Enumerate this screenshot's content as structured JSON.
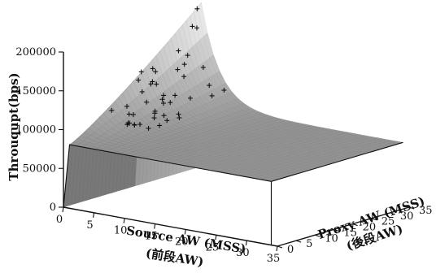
{
  "chart_data": {
    "type": "surface",
    "zlabel": "Throuqupt(bps)",
    "xlabel": "Source AW (MSS)",
    "xlabel_sub": "(前段AW)",
    "ylabel": "Proxy AW (MSS)",
    "ylabel_sub": "(後段AW)",
    "x_ticks": [
      "0",
      "5",
      "10",
      "15",
      "20",
      "25",
      "30",
      "35"
    ],
    "y_ticks": [
      "0",
      "5",
      "10",
      "15",
      "20",
      "25",
      "30",
      "35"
    ],
    "z_ticks": [
      "0",
      "50000",
      "100000",
      "150000",
      "200000"
    ],
    "xlim": [
      0,
      35
    ],
    "ylim": [
      0,
      35
    ],
    "zlim": [
      0,
      200000
    ],
    "description_of_surface": {
      "plateau_throughput": 82000,
      "rise_near_low_source_aw": true,
      "peak_throughput_at_source_aw_1_proxy_aw_35": 215000,
      "drop_to_zero_at_source_aw_0": true
    }
  }
}
